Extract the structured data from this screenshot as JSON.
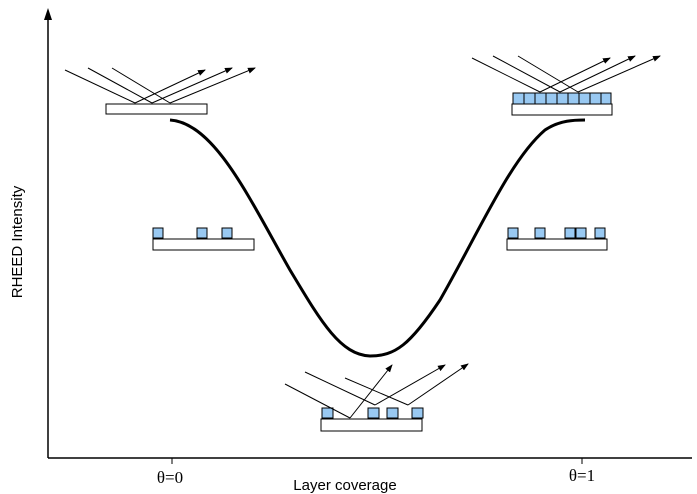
{
  "axes": {
    "y_label": "RHEED Intensity",
    "x_label": "Layer coverage",
    "x_ticks": [
      "θ=0",
      "θ=1"
    ]
  }
}
